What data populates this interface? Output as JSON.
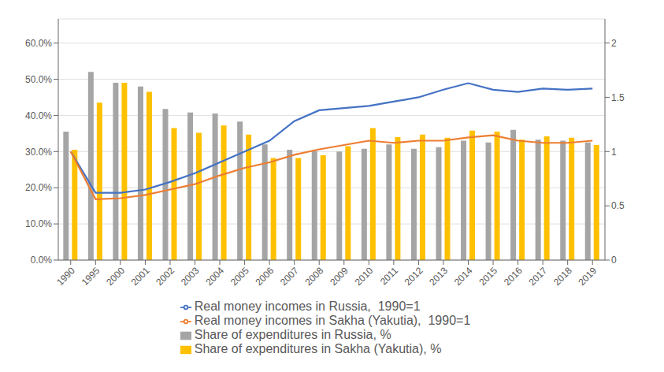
{
  "chart_data": {
    "type": "bar",
    "categories": [
      "1990",
      "1995",
      "2000",
      "2001",
      "2002",
      "2003",
      "2004",
      "2005",
      "2006",
      "2007",
      "2008",
      "2009",
      "2010",
      "2011",
      "2012",
      "2013",
      "2014",
      "2015",
      "2016",
      "2017",
      "2018",
      "2019"
    ],
    "series": [
      {
        "name": "Share of expenditures in Russia, %",
        "type": "bar",
        "color": "#A5A5A5",
        "values": [
          0.355,
          0.52,
          0.49,
          0.48,
          0.418,
          0.408,
          0.405,
          0.383,
          0.32,
          0.305,
          0.302,
          0.3,
          0.308,
          0.32,
          0.308,
          0.312,
          0.33,
          0.325,
          0.36,
          0.333,
          0.33,
          0.325
        ]
      },
      {
        "name": "Share of expenditures in Sakha (Yakutia), %",
        "type": "bar",
        "color": "#FFC000",
        "values": [
          0.305,
          0.435,
          0.49,
          0.465,
          0.365,
          0.352,
          0.372,
          0.347,
          0.282,
          0.282,
          0.29,
          0.315,
          0.365,
          0.34,
          0.347,
          0.338,
          0.358,
          0.355,
          0.333,
          0.342,
          0.338,
          0.318
        ]
      },
      {
        "name": "Real money incomes in Russia,  1990=1",
        "type": "line",
        "axis": "y2",
        "color": "#4472C4",
        "values": [
          1.0,
          0.62,
          0.62,
          0.65,
          0.72,
          0.8,
          0.9,
          1.0,
          1.1,
          1.28,
          1.38,
          1.4,
          1.42,
          1.46,
          1.5,
          1.57,
          1.63,
          1.57,
          1.55,
          1.58,
          1.57,
          1.58
        ]
      },
      {
        "name": "Real money incomes in Sakha (Yakutia),  1990=1",
        "type": "line",
        "axis": "y2",
        "color": "#ED7D31",
        "values": [
          1.0,
          0.56,
          0.57,
          0.6,
          0.65,
          0.7,
          0.78,
          0.85,
          0.9,
          0.97,
          1.02,
          1.06,
          1.1,
          1.08,
          1.1,
          1.1,
          1.13,
          1.15,
          1.1,
          1.08,
          1.08,
          1.1
        ]
      }
    ],
    "ylim": [
      0.0,
      0.6667
    ],
    "yticks": [
      {
        "value": 0.0,
        "label": "0.0%"
      },
      {
        "value": 0.1,
        "label": "10.0%"
      },
      {
        "value": 0.2,
        "label": "20.0%"
      },
      {
        "value": 0.3,
        "label": "30.0%"
      },
      {
        "value": 0.4,
        "label": "40.0%"
      },
      {
        "value": 0.5,
        "label": "50.0%"
      },
      {
        "value": 0.6,
        "label": "60.0%"
      }
    ],
    "y2lim": [
      0,
      2.222
    ],
    "y2ticks": [
      0,
      0.5,
      1.0,
      1.5,
      2.0
    ],
    "grid": true,
    "legend": "bottom"
  }
}
